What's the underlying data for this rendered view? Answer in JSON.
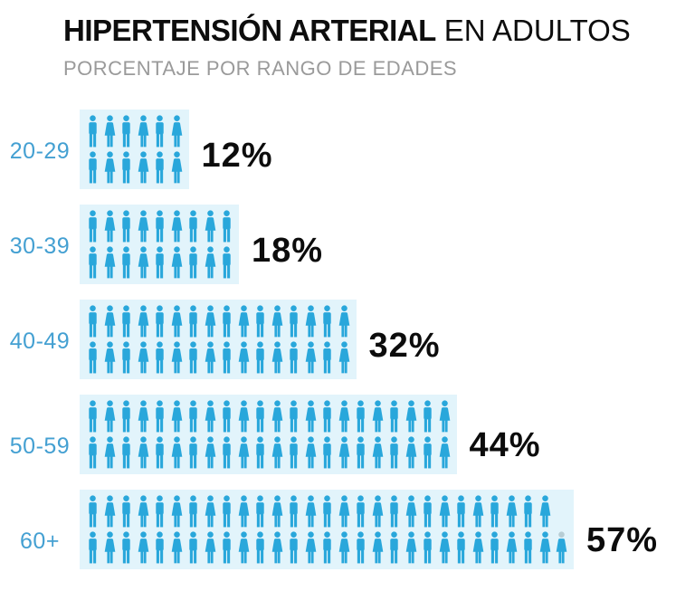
{
  "header": {
    "title_bold": "HIPERTENSIÓN ARTERIAL",
    "title_light": "EN ADULTOS",
    "subtitle": "PORCENTAJE POR RANGO DE EDADES"
  },
  "colors": {
    "icon_blue": "#29a7db",
    "block_bg": "#e2f4fb",
    "label_blue": "#44a0d2",
    "pct_black": "#0c0c0c",
    "subtitle_gray": "#9a9a9a",
    "partial_head": "#b7cdd4"
  },
  "chart_data": {
    "type": "pictogram",
    "title": "HIPERTENSIÓN ARTERIAL EN ADULTOS",
    "subtitle": "PORCENTAJE POR RANGO DE EDADES",
    "categories": [
      "20-29",
      "30-39",
      "40-49",
      "50-59",
      "60+"
    ],
    "values": [
      12,
      18,
      32,
      44,
      57
    ],
    "value_labels": [
      "12%",
      "18%",
      "32%",
      "44%",
      "57%"
    ],
    "icon_semantics": "one person icon per percentage point, alternating male and female figures",
    "rows": [
      {
        "label": "20-29",
        "pct": "12%",
        "value": 12,
        "icon_rows": [
          6,
          6
        ]
      },
      {
        "label": "30-39",
        "pct": "18%",
        "value": 18,
        "icon_rows": [
          9,
          9
        ]
      },
      {
        "label": "40-49",
        "pct": "32%",
        "value": 32,
        "icon_rows": [
          16,
          16
        ]
      },
      {
        "label": "50-59",
        "pct": "44%",
        "value": 44,
        "icon_rows": [
          22,
          22
        ]
      },
      {
        "label": "60+",
        "pct": "57%",
        "value": 57,
        "icon_rows": [
          28,
          29
        ],
        "last_icon_light_head": true
      }
    ],
    "layout_hints": {
      "legend": false,
      "grid": false,
      "orientation": "horizontal rows"
    }
  }
}
